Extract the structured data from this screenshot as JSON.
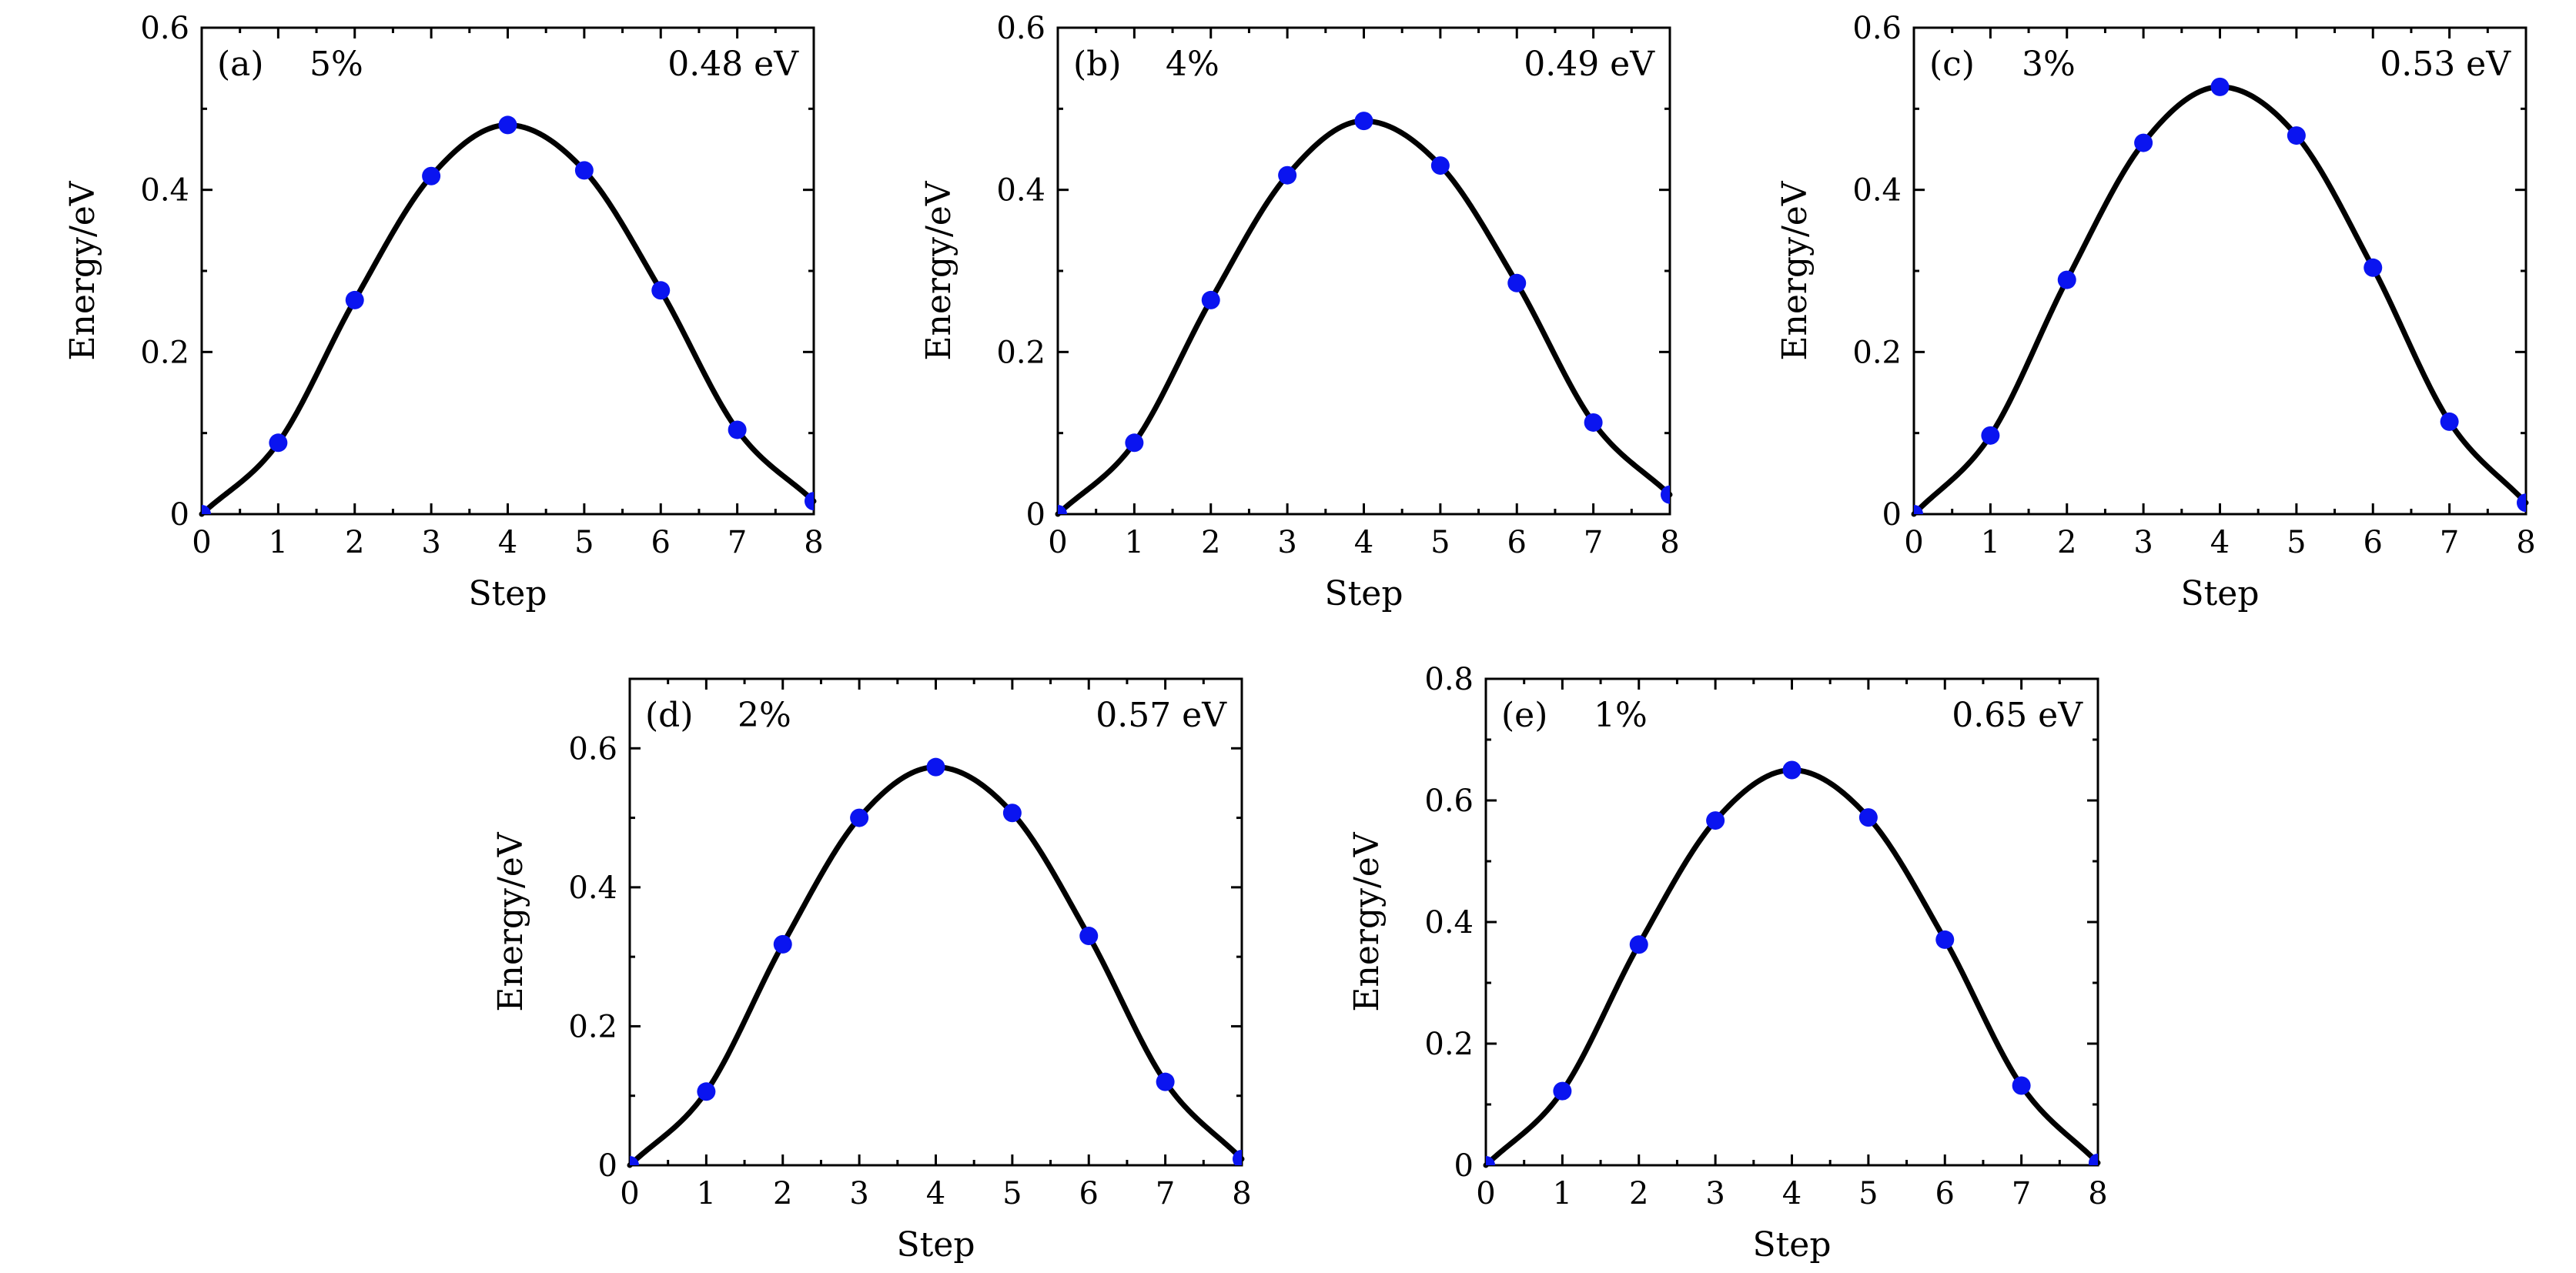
{
  "figure": {
    "colors": {
      "curve": "#000000",
      "marker": "#0a14f0",
      "frame": "#000000"
    }
  },
  "chart_data": [
    {
      "type": "line",
      "panel_label": "(a)",
      "strain": "5%",
      "barrier": "0.48 eV",
      "xlabel": "Step",
      "ylabel": "Energy/eV",
      "x": [
        0,
        1,
        2,
        3,
        4,
        5,
        6,
        7,
        8
      ],
      "values": [
        0.0,
        0.088,
        0.264,
        0.417,
        0.48,
        0.424,
        0.276,
        0.104,
        0.016
      ],
      "xlim": [
        0,
        8
      ],
      "ylim": [
        0,
        0.6
      ],
      "xticks": [
        "0",
        "1",
        "2",
        "3",
        "4",
        "5",
        "6",
        "7",
        "8"
      ],
      "yticks": [
        {
          "v": 0,
          "label": "0"
        },
        {
          "v": 0.2,
          "label": "0.2"
        },
        {
          "v": 0.4,
          "label": "0.4"
        },
        {
          "v": 0.6,
          "label": "0.6"
        }
      ]
    },
    {
      "type": "line",
      "panel_label": "(b)",
      "strain": "4%",
      "barrier": "0.49 eV",
      "xlabel": "Step",
      "ylabel": "Energy/eV",
      "x": [
        0,
        1,
        2,
        3,
        4,
        5,
        6,
        7,
        8
      ],
      "values": [
        0.0,
        0.088,
        0.264,
        0.418,
        0.485,
        0.43,
        0.285,
        0.113,
        0.024
      ],
      "xlim": [
        0,
        8
      ],
      "ylim": [
        0,
        0.6
      ],
      "xticks": [
        "0",
        "1",
        "2",
        "3",
        "4",
        "5",
        "6",
        "7",
        "8"
      ],
      "yticks": [
        {
          "v": 0,
          "label": "0"
        },
        {
          "v": 0.2,
          "label": "0.2"
        },
        {
          "v": 0.4,
          "label": "0.4"
        },
        {
          "v": 0.6,
          "label": "0.6"
        }
      ]
    },
    {
      "type": "line",
      "panel_label": "(c)",
      "strain": "3%",
      "barrier": "0.53 eV",
      "xlabel": "Step",
      "ylabel": "Energy/eV",
      "x": [
        0,
        1,
        2,
        3,
        4,
        5,
        6,
        7,
        8
      ],
      "values": [
        0.0,
        0.097,
        0.289,
        0.458,
        0.527,
        0.467,
        0.304,
        0.114,
        0.014
      ],
      "xlim": [
        0,
        8
      ],
      "ylim": [
        0,
        0.6
      ],
      "xticks": [
        "0",
        "1",
        "2",
        "3",
        "4",
        "5",
        "6",
        "7",
        "8"
      ],
      "yticks": [
        {
          "v": 0,
          "label": "0"
        },
        {
          "v": 0.2,
          "label": "0.2"
        },
        {
          "v": 0.4,
          "label": "0.4"
        },
        {
          "v": 0.6,
          "label": "0.6"
        }
      ]
    },
    {
      "type": "line",
      "panel_label": "(d)",
      "strain": "2%",
      "barrier": "0.57 eV",
      "xlabel": "Step",
      "ylabel": "Energy/eV",
      "x": [
        0,
        1,
        2,
        3,
        4,
        5,
        6,
        7,
        8
      ],
      "values": [
        0.0,
        0.106,
        0.318,
        0.5,
        0.573,
        0.507,
        0.33,
        0.12,
        0.009
      ],
      "xlim": [
        0,
        8
      ],
      "ylim": [
        0,
        0.7
      ],
      "xticks": [
        "0",
        "1",
        "2",
        "3",
        "4",
        "5",
        "6",
        "7",
        "8"
      ],
      "yticks": [
        {
          "v": 0,
          "label": "0"
        },
        {
          "v": 0.2,
          "label": "0.2"
        },
        {
          "v": 0.4,
          "label": "0.4"
        },
        {
          "v": 0.6,
          "label": "0.6"
        }
      ]
    },
    {
      "type": "line",
      "panel_label": "(e)",
      "strain": "1%",
      "barrier": "0.65 eV",
      "xlabel": "Step",
      "ylabel": "Energy/eV",
      "x": [
        0,
        1,
        2,
        3,
        4,
        5,
        6,
        7,
        8
      ],
      "values": [
        0.0,
        0.122,
        0.363,
        0.567,
        0.65,
        0.572,
        0.371,
        0.131,
        0.004
      ],
      "xlim": [
        0,
        8
      ],
      "ylim": [
        0,
        0.8
      ],
      "xticks": [
        "0",
        "1",
        "2",
        "3",
        "4",
        "5",
        "6",
        "7",
        "8"
      ],
      "yticks": [
        {
          "v": 0,
          "label": "0"
        },
        {
          "v": 0.2,
          "label": "0.2"
        },
        {
          "v": 0.4,
          "label": "0.4"
        },
        {
          "v": 0.6,
          "label": "0.6"
        },
        {
          "v": 0.8,
          "label": "0.8"
        }
      ]
    }
  ]
}
